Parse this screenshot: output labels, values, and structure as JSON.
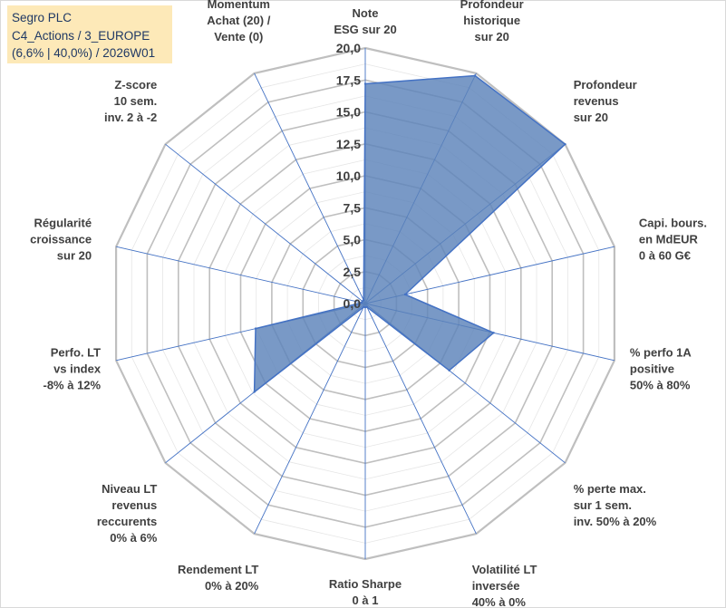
{
  "info": {
    "line1": "Segro PLC",
    "line2": "C4_Actions / 3_EUROPE",
    "line3": "(6,6% | 40,0%) / 2026W01"
  },
  "colors": {
    "fill": "#5b83b9",
    "stroke": "#4472c4",
    "grid": "#bfbfbf",
    "spoke": "#4472c4",
    "info_bg": "#fde9b8",
    "info_text": "#1f3864"
  },
  "chart_data": {
    "type": "radar",
    "rmin": 0,
    "rmax": 20,
    "ticks": [
      "0,0",
      "2,5",
      "5,0",
      "7,5",
      "10,0",
      "12,5",
      "15,0",
      "17,5",
      "20,0"
    ],
    "axes": [
      {
        "label": [
          "Note",
          "ESG sur 20"
        ],
        "value": 17.2
      },
      {
        "label": [
          "Profondeur",
          "historique",
          "sur 20"
        ],
        "value": 19.8
      },
      {
        "label": [
          "Profondeur",
          "revenus",
          "sur 20"
        ],
        "value": 20.0
      },
      {
        "label": [
          "Capi. bours.",
          "en MdEUR",
          "0 à 60 G€"
        ],
        "value": 3.2
      },
      {
        "label": [
          "% perfo 1A",
          "positive",
          "50% à 80%"
        ],
        "value": 10.3
      },
      {
        "label": [
          "% perte max.",
          "sur 1 sem.",
          "inv. 50% à 20%"
        ],
        "value": 8.4
      },
      {
        "label": [
          "Volatilité LT",
          "inversée",
          "40% à 0%"
        ],
        "value": 0.3
      },
      {
        "label": [
          "Ratio Sharpe",
          "0 à 1"
        ],
        "value": 0.3
      },
      {
        "label": [
          "Rendement LT",
          "0% à 20%"
        ],
        "value": 0.3
      },
      {
        "label": [
          "Niveau LT",
          "revenus",
          "reccurents",
          "0% à 6%"
        ],
        "value": 11.1
      },
      {
        "label": [
          "Perfo. LT",
          "vs index",
          "-8% à 12%"
        ],
        "value": 8.8
      },
      {
        "label": [
          "Régularité",
          "croissance",
          "sur 20"
        ],
        "value": 0.3
      },
      {
        "label": [
          "Z-score",
          "10 sem.",
          "inv. 2 à -2"
        ],
        "value": 0.3
      },
      {
        "label": [
          "Momentum",
          "Achat (20) /",
          "Vente (0)"
        ],
        "value": 0.3
      }
    ]
  }
}
